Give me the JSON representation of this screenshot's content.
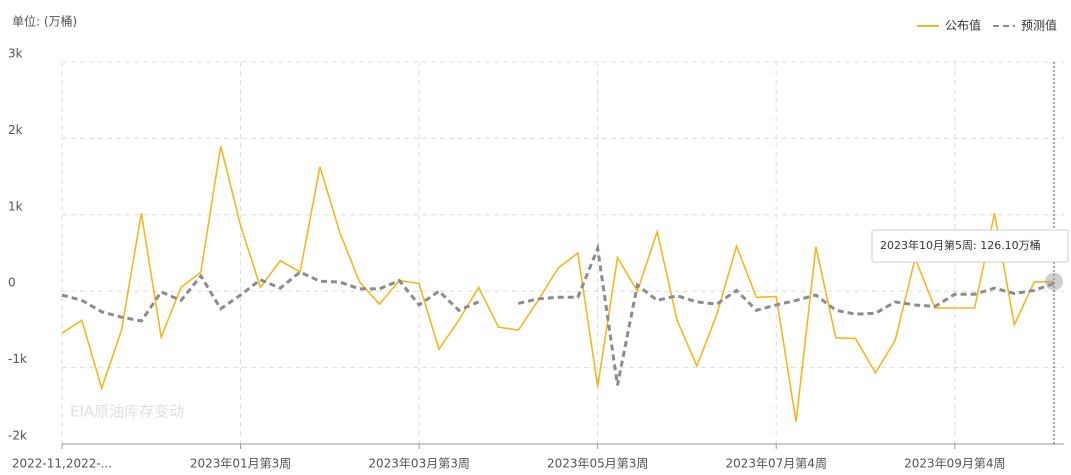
{
  "chart_data": {
    "type": "line",
    "unit_label": "单位: (万桶)",
    "watermark": "EIA原油库存变动",
    "tooltip": "2023年10月第5周: 126.10万桶",
    "categories": [
      "2022-11,2022-...",
      null,
      null,
      null,
      null,
      null,
      null,
      null,
      null,
      "2023年01月第3周",
      null,
      null,
      null,
      null,
      null,
      null,
      null,
      null,
      "2023年03月第3周",
      null,
      null,
      null,
      null,
      null,
      null,
      null,
      null,
      "2023年05月第3周",
      null,
      null,
      null,
      null,
      null,
      null,
      null,
      null,
      "2023年07月第4周",
      null,
      null,
      null,
      null,
      null,
      null,
      null,
      null,
      "2023年09月第4周",
      null,
      null,
      null,
      null,
      null
    ],
    "series": [
      {
        "name": "公布值",
        "color": "#f5b622",
        "dashed": false,
        "values": [
          -550,
          -380,
          -1270,
          -510,
          1020,
          -600,
          50,
          250,
          1900,
          860,
          50,
          400,
          250,
          1630,
          770,
          120,
          -170,
          140,
          100,
          -760,
          -380,
          50,
          -470,
          -510,
          -120,
          300,
          500,
          -1250,
          440,
          0,
          780,
          -380,
          -980,
          -310,
          590,
          -80,
          -70,
          -1710,
          580,
          -610,
          -620,
          -1070,
          -640,
          430,
          -220,
          -220,
          -220,
          1020,
          -440,
          120,
          126.1
        ]
      },
      {
        "name": "预测值",
        "color": "#8c8c8c",
        "dashed": true,
        "values": [
          -50,
          -120,
          -270,
          -340,
          -390,
          -10,
          -120,
          200,
          -230,
          -50,
          150,
          40,
          250,
          130,
          120,
          30,
          30,
          140,
          -180,
          0,
          -250,
          -140,
          null,
          -160,
          -100,
          -80,
          -80,
          560,
          -1230,
          80,
          -120,
          -60,
          -140,
          -170,
          10,
          -250,
          -180,
          -120,
          -50,
          -250,
          -300,
          -290,
          -140,
          -180,
          -200,
          -40,
          -40,
          40,
          -30,
          10,
          100
        ]
      }
    ],
    "ylim": [
      -2000,
      3000
    ],
    "yticks": [
      {
        "value": -2000,
        "label": "-2k"
      },
      {
        "value": -1000,
        "label": "-1k"
      },
      0,
      {
        "value": 1000,
        "label": "1k"
      },
      {
        "value": 2000,
        "label": "2k"
      },
      {
        "value": 3000,
        "label": "3k"
      }
    ],
    "grid": true,
    "legend": "top-right"
  }
}
